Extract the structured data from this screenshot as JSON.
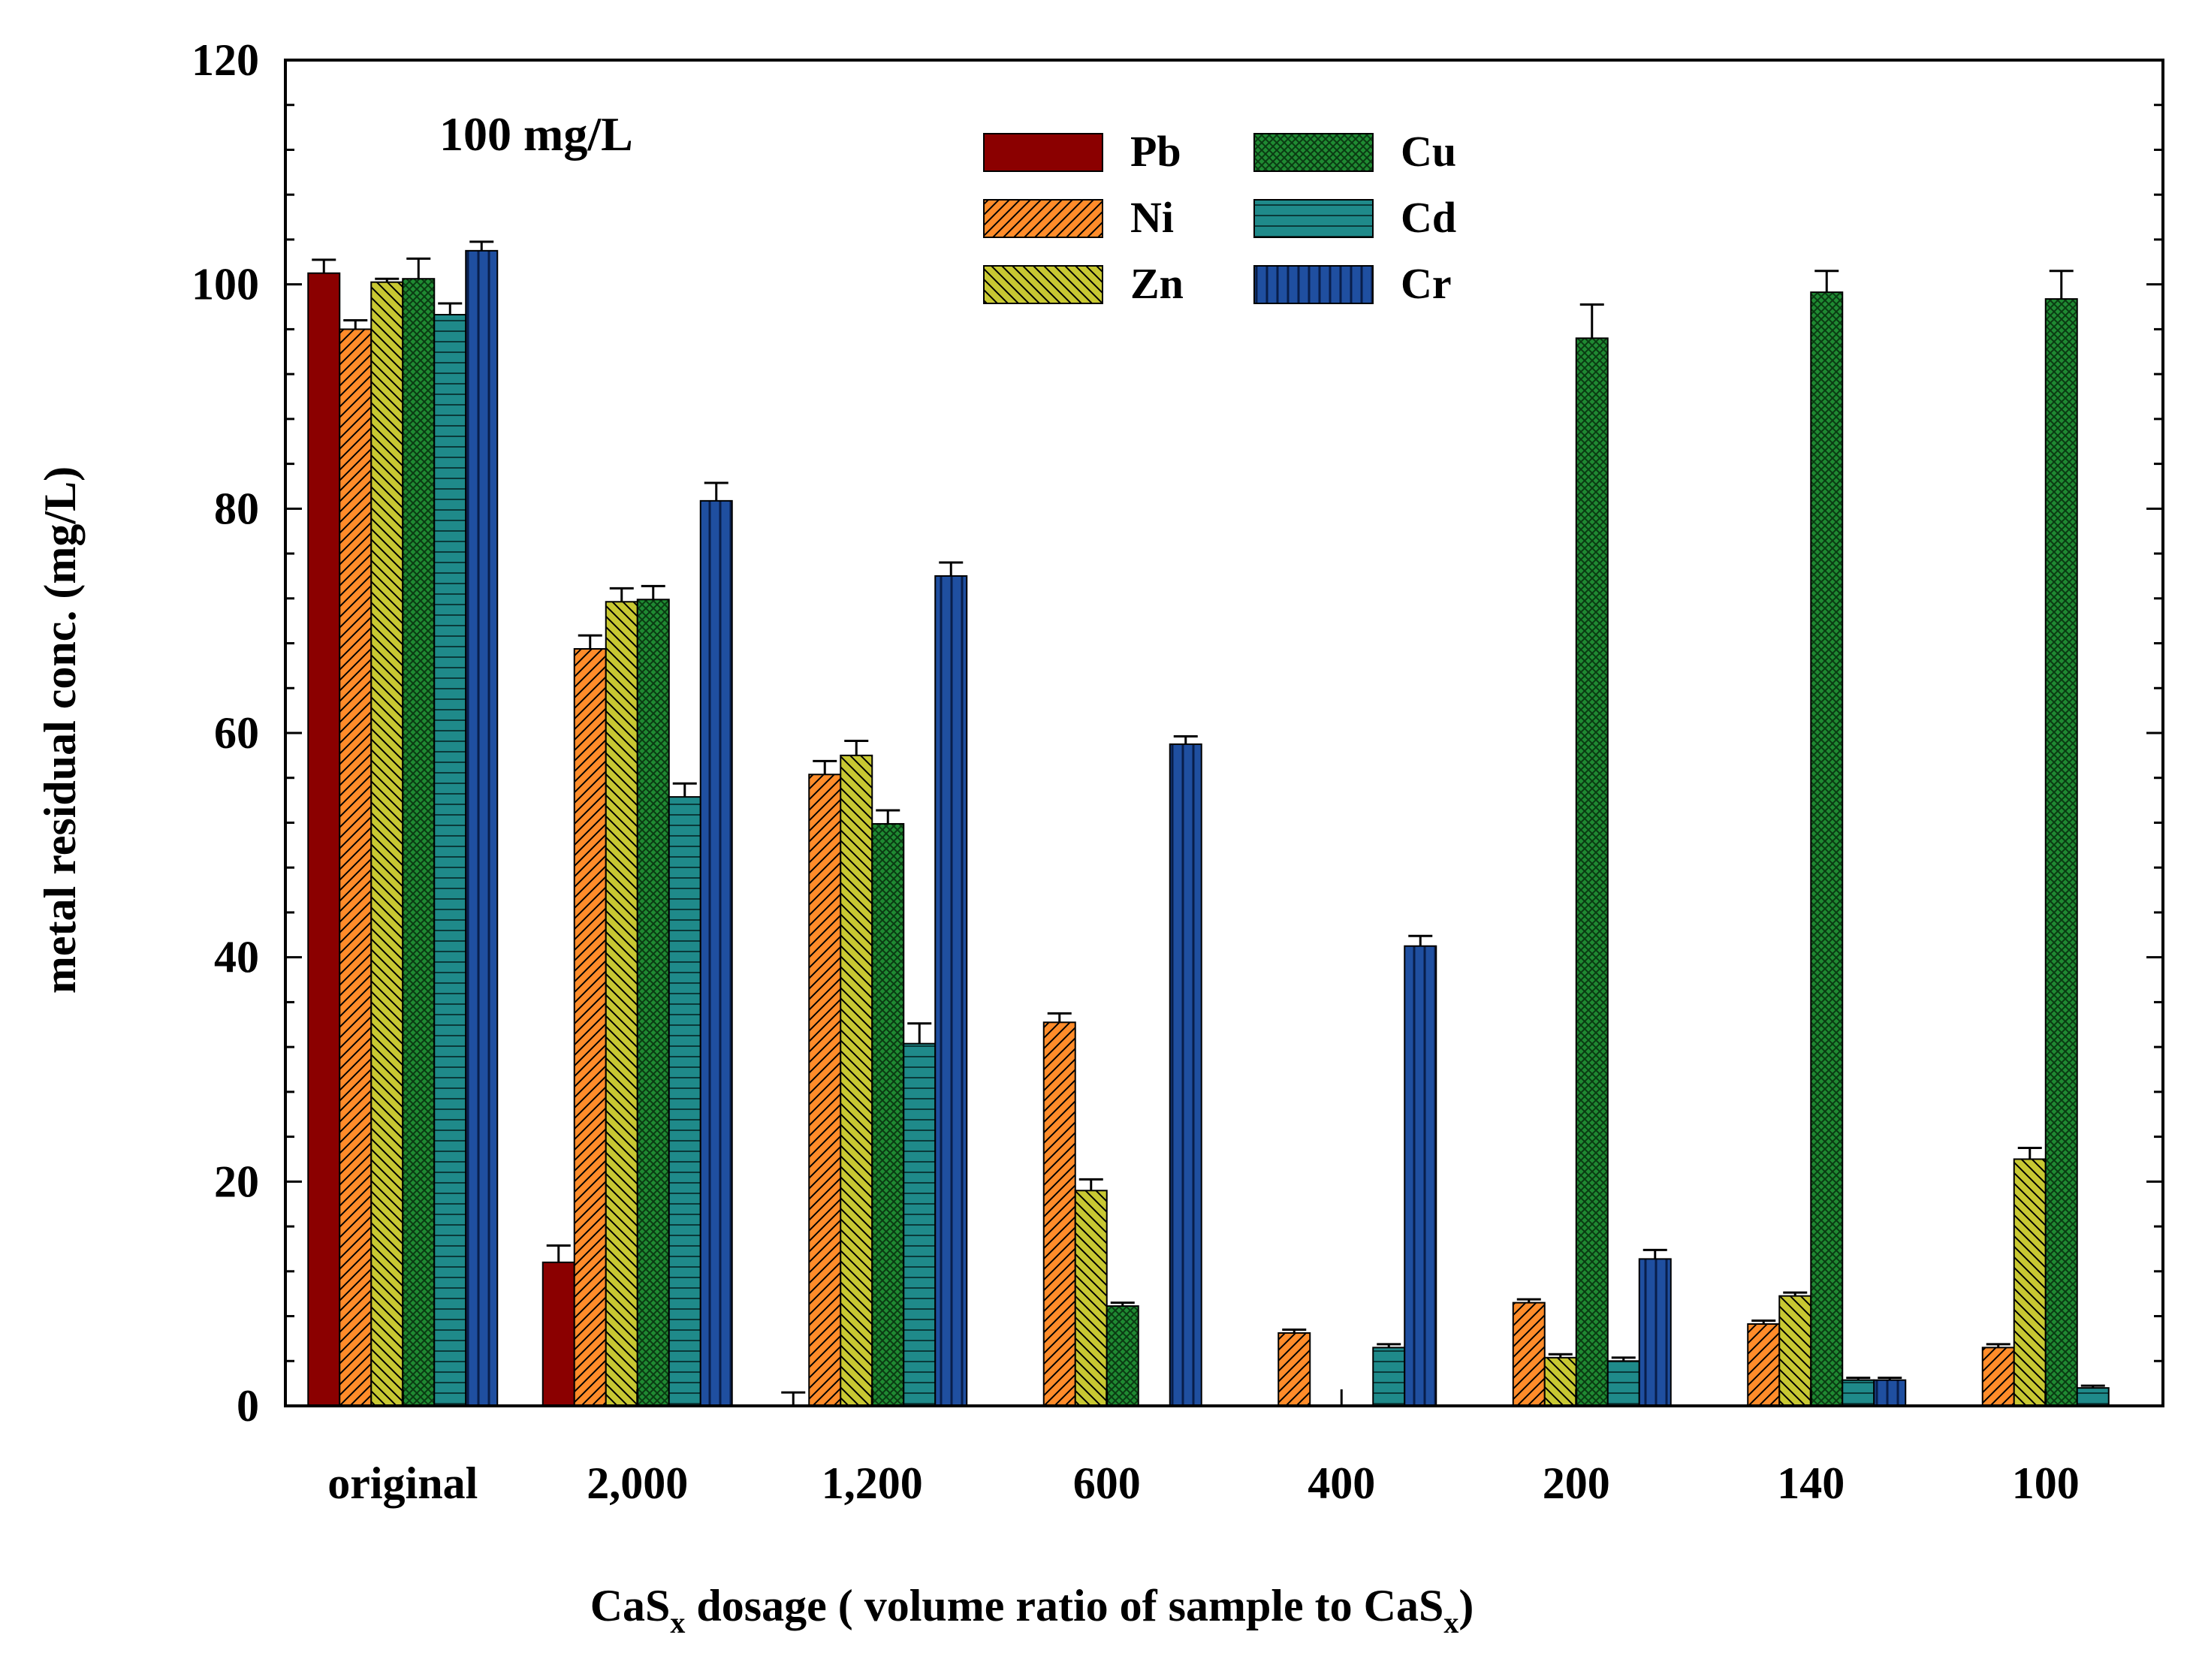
{
  "chart_data": {
    "type": "bar",
    "title": "100 mg/L",
    "xlabel_main": "CaS",
    "xlabel_sub": "x",
    "xlabel_mid": " dosage ( volume ratio of sample to CaS",
    "xlabel_end": ")",
    "ylabel": "metal residual conc. (mg/L)",
    "ylim": [
      0,
      120
    ],
    "yticks": [
      0,
      20,
      40,
      60,
      80,
      100,
      120
    ],
    "grid": false,
    "legend_position": "top-center",
    "categories": [
      "original",
      "2,000",
      "1,200",
      "600",
      "400",
      "200",
      "140",
      "100"
    ],
    "series": [
      {
        "name": "Pb",
        "pattern": "solid",
        "color": "#8b0000",
        "values": [
          101,
          12.8,
          0,
          0,
          0,
          0,
          0,
          0
        ],
        "errors": [
          1.2,
          1.5,
          1.2,
          0,
          0,
          0,
          0,
          0
        ]
      },
      {
        "name": "Ni",
        "pattern": "diag-fwd",
        "color": "#ff8c2a",
        "values": [
          96,
          67.5,
          56.3,
          34.2,
          6.5,
          9.2,
          7.3,
          5.2
        ],
        "errors": [
          0.8,
          1.2,
          1.2,
          0.8,
          0.3,
          0.3,
          0.3,
          0.3
        ]
      },
      {
        "name": "Zn",
        "pattern": "diag-bwd",
        "color": "#c8c832",
        "values": [
          100.2,
          71.7,
          58,
          19.2,
          0,
          4.3,
          9.8,
          22
        ],
        "errors": [
          0.3,
          1.2,
          1.3,
          1.0,
          0,
          0.3,
          0.3,
          1.0
        ]
      },
      {
        "name": "Cu",
        "pattern": "cross",
        "color": "#1f8a32",
        "values": [
          100.5,
          71.9,
          51.9,
          8.9,
          0,
          95.2,
          99.3,
          98.7
        ],
        "errors": [
          1.8,
          1.2,
          1.2,
          0.3,
          0,
          3.0,
          1.9,
          2.5
        ]
      },
      {
        "name": "Cd",
        "pattern": "horiz",
        "color": "#1f8a8a",
        "values": [
          97.3,
          54.3,
          32.3,
          0,
          5.2,
          4.0,
          2.3,
          1.6
        ],
        "errors": [
          1.0,
          1.2,
          1.8,
          0,
          0.3,
          0.3,
          0.2,
          0.2
        ]
      },
      {
        "name": "Cr",
        "pattern": "vert",
        "color": "#1f4fa0",
        "values": [
          103,
          80.7,
          74,
          59,
          41,
          13.1,
          2.3,
          0
        ],
        "errors": [
          0.8,
          1.6,
          1.2,
          0.7,
          0.9,
          0.8,
          0.2,
          0
        ]
      }
    ]
  }
}
